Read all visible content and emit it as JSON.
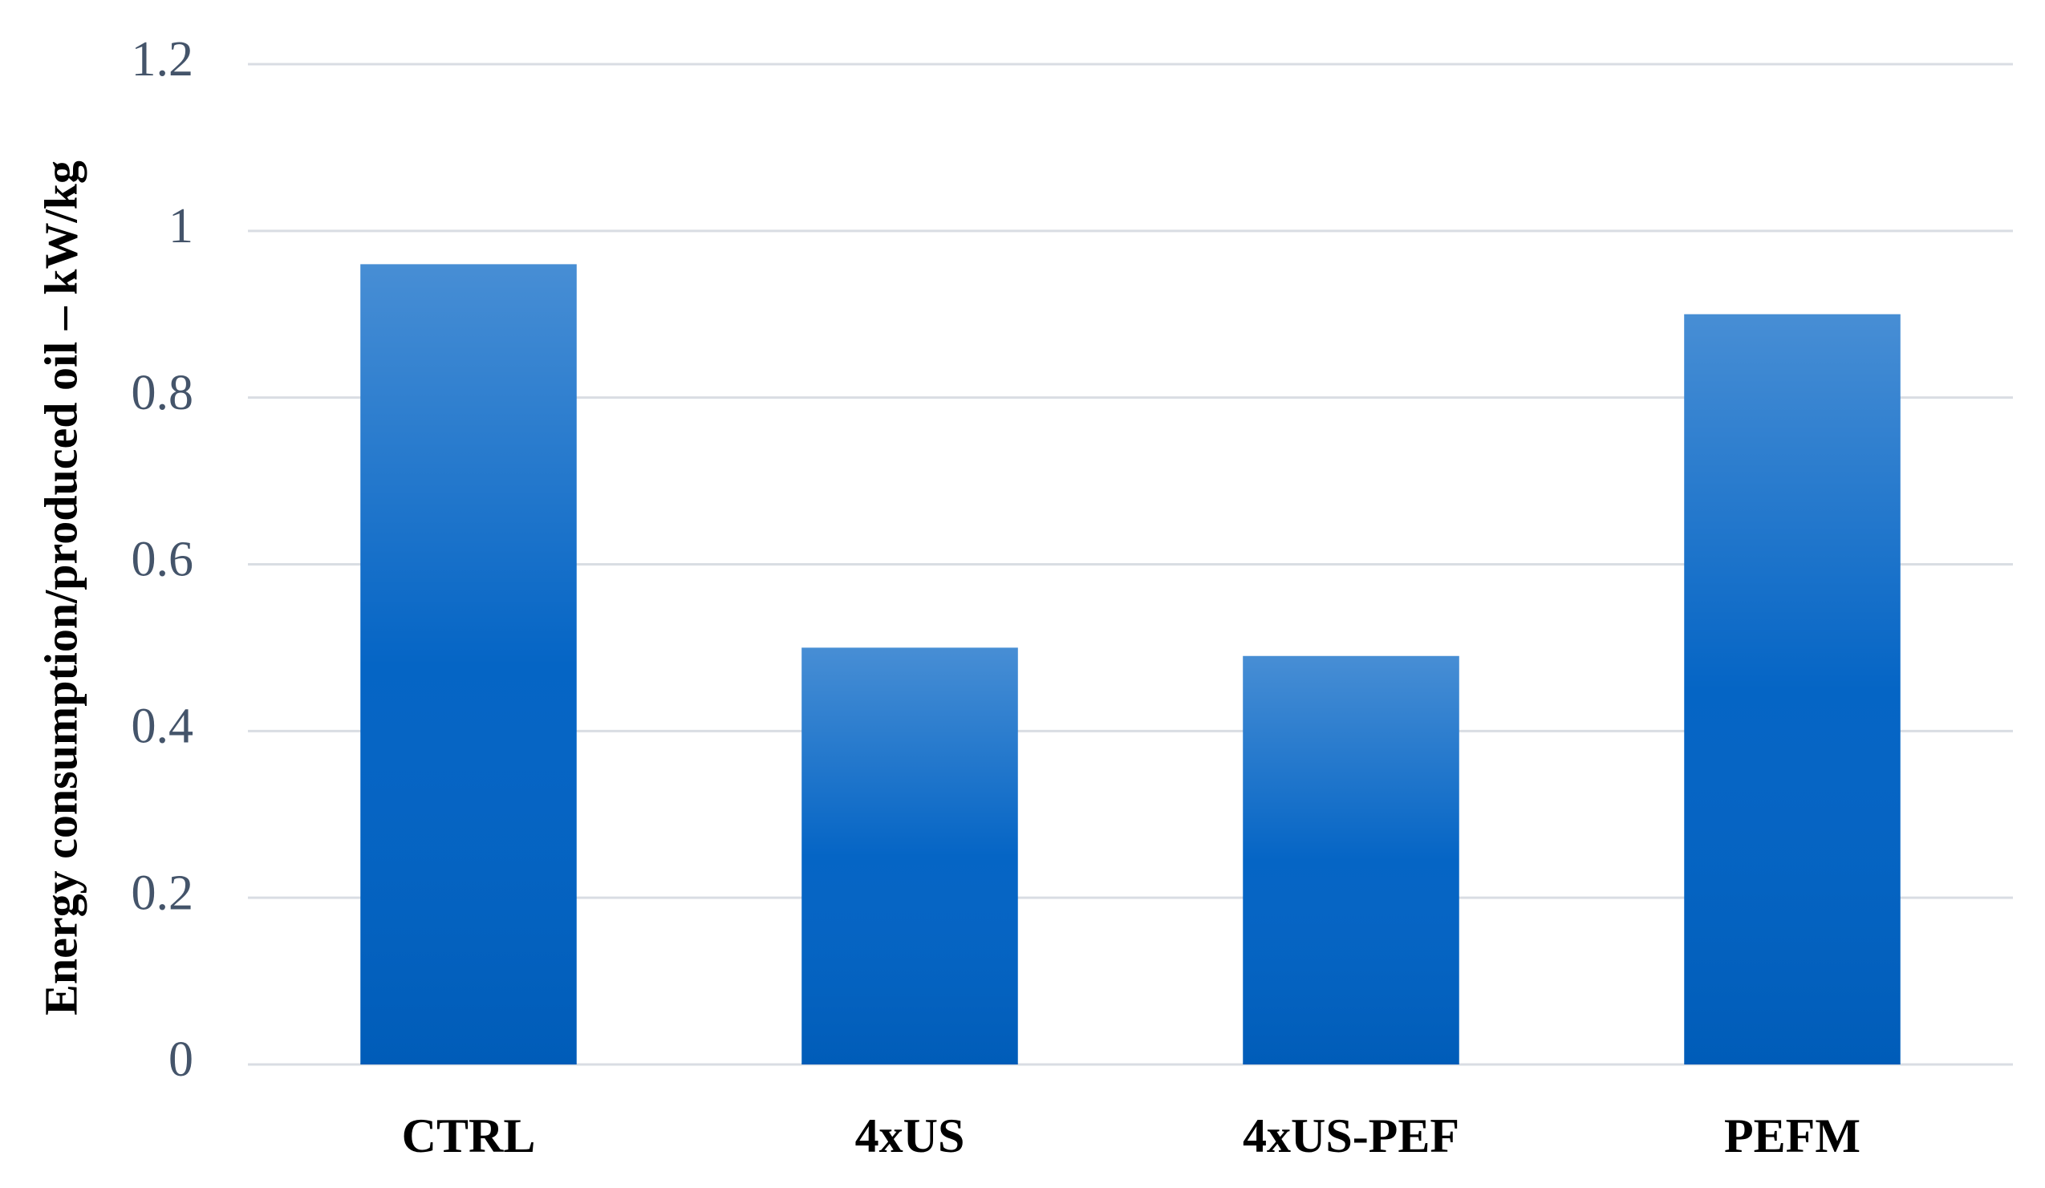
{
  "chart_data": {
    "type": "bar",
    "y_label": "Energy consumption/produced oil – kW/kg",
    "categories": [
      "CTRL",
      "4xUS",
      "4xUS-PEF",
      "PEFM"
    ],
    "values": [
      0.96,
      0.5,
      0.49,
      0.9
    ],
    "color": "#0062c4",
    "ylim": [
      0,
      1.2
    ],
    "yticks": [
      0,
      0.2,
      0.4,
      0.6,
      0.8,
      1,
      1.2
    ],
    "grid": true
  }
}
